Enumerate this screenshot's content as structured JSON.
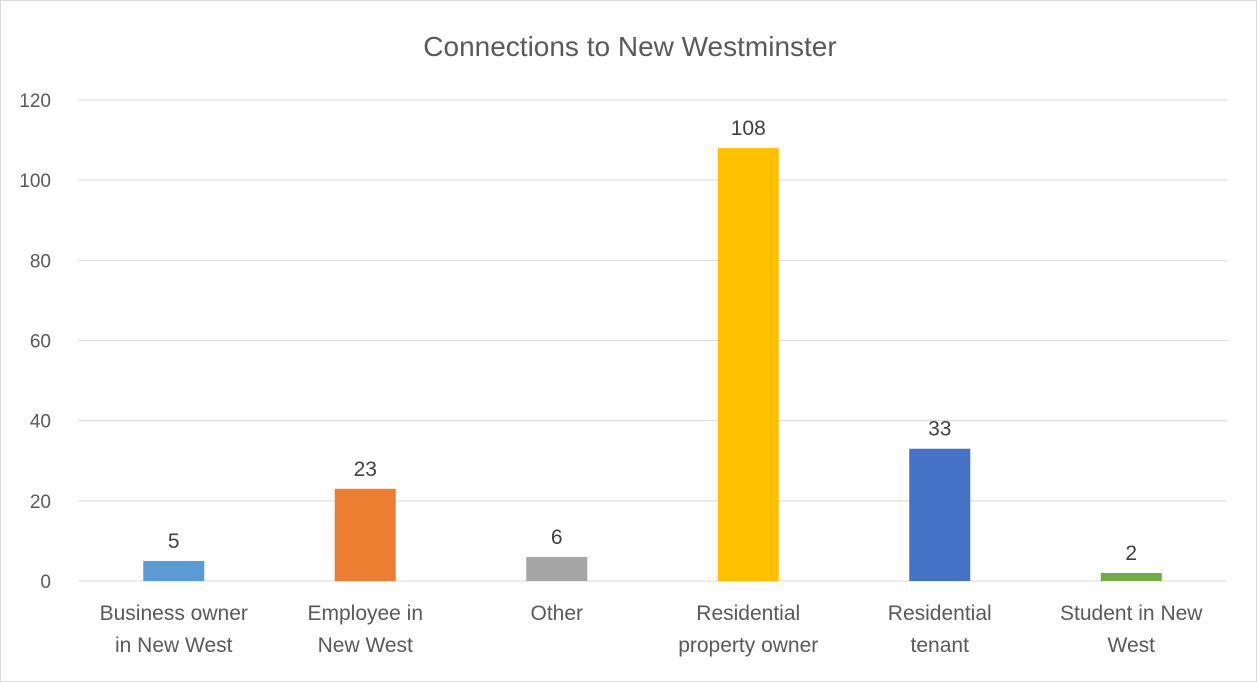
{
  "chart_data": {
    "type": "bar",
    "title": "Connections to New Westminster",
    "categories": [
      [
        "Business owner",
        "in New West"
      ],
      [
        "Employee in",
        "New West"
      ],
      [
        "Other"
      ],
      [
        "Residential",
        "property owner"
      ],
      [
        "Residential",
        "tenant"
      ],
      [
        "Student in New",
        "West"
      ]
    ],
    "values": [
      5,
      23,
      6,
      108,
      33,
      2
    ],
    "data_labels": [
      "5",
      "23",
      "6",
      "108",
      "33",
      "2"
    ],
    "colors": [
      "#5b9bd5",
      "#ed7d31",
      "#a5a5a5",
      "#ffc000",
      "#4472c4",
      "#70ad47"
    ],
    "ylim": [
      0,
      120
    ],
    "yticks": [
      0,
      20,
      40,
      60,
      80,
      100,
      120
    ],
    "xlabel": "",
    "ylabel": "",
    "grid": true,
    "legend": "none"
  }
}
